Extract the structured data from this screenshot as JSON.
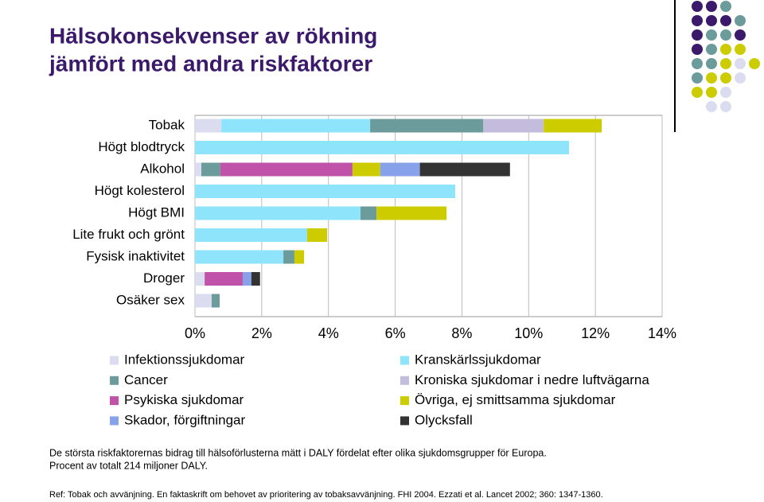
{
  "chart_data": {
    "type": "stacked-barh",
    "title": [
      "Hälsokonsekvenser av rökning",
      "jämfört med andra riskfaktorer"
    ],
    "categories": [
      "Tobak",
      "Högt blodtryck",
      "Alkohol",
      "Högt kolesterol",
      "Högt BMI",
      "Lite frukt och grönt",
      "Fysisk inaktivitet",
      "Droger",
      "Osäker sex"
    ],
    "series": [
      {
        "name": "Infektionssjukdomar",
        "color": "#dcdcf0",
        "values": [
          0.79,
          0,
          0.19,
          0,
          0,
          0,
          0,
          0.29,
          0.5
        ]
      },
      {
        "name": "Kranskärlssjukdomar",
        "color": "#8ee4fa",
        "values": [
          4.46,
          11.21,
          0,
          7.8,
          4.96,
          3.36,
          2.65,
          0,
          0
        ]
      },
      {
        "name": "Cancer",
        "color": "#6b9b9b",
        "values": [
          3.39,
          0,
          0.57,
          0,
          0.48,
          0,
          0.33,
          0,
          0.24
        ]
      },
      {
        "name": "Kroniska sjukdomar i nedre luftvägarna",
        "color": "#c4bcdc",
        "values": [
          1.81,
          0,
          0,
          0,
          0,
          0,
          0,
          0,
          0
        ]
      },
      {
        "name": "Psykiska sjukdomar",
        "color": "#c152aa",
        "values": [
          0,
          0,
          3.96,
          0,
          0,
          0,
          0,
          1.14,
          0
        ]
      },
      {
        "name": "Övriga, ej smittsamma sjukdomar",
        "color": "#cccc00",
        "values": [
          1.74,
          0,
          0.83,
          0,
          2.1,
          0.6,
          0.29,
          0,
          0
        ]
      },
      {
        "name": "Skador, förgiftningar",
        "color": "#88a2ea",
        "values": [
          0,
          0,
          1.19,
          0,
          0,
          0,
          0,
          0.26,
          0
        ]
      },
      {
        "name": "Olycksfall",
        "color": "#333333",
        "values": [
          0,
          0,
          2.7,
          0,
          0,
          0,
          0,
          0.26,
          0
        ]
      }
    ],
    "xlim": [
      0,
      14
    ],
    "xticks": [
      {
        "value": 0,
        "label": "0%"
      },
      {
        "value": 2,
        "label": "2%"
      },
      {
        "value": 4,
        "label": "4%"
      },
      {
        "value": 6,
        "label": "6%"
      },
      {
        "value": 8,
        "label": "8%"
      },
      {
        "value": 10,
        "label": "10%"
      },
      {
        "value": 12,
        "label": "12%"
      },
      {
        "value": 14,
        "label": "14%"
      }
    ],
    "grid": true,
    "notes": [
      "De största riskfaktorernas bidrag till hälsoförlusterna mätt i DALY fördelat efter olika sjukdomsgrupper för Europa.",
      "Procent av totalt 214 miljoner DALY."
    ],
    "reference": "Ref: Tobak och avvänjning. En faktaskrift om behovet av prioritering av tobaksavvänjning. FHI 2004. Ezzati et al. Lancet 2002; 360: 1347-1360."
  }
}
